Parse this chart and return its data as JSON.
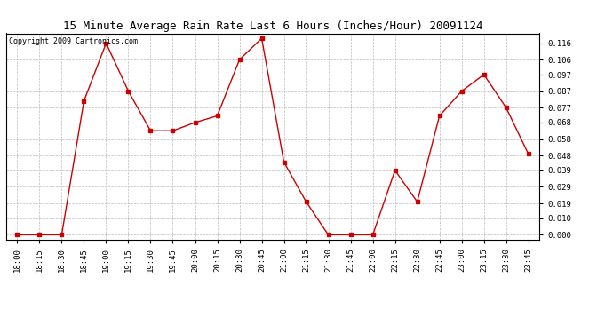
{
  "title": "15 Minute Average Rain Rate Last 6 Hours (Inches/Hour) 20091124",
  "copyright": "Copyright 2009 Cartronics.com",
  "x_labels": [
    "18:00",
    "18:15",
    "18:30",
    "18:45",
    "19:00",
    "19:15",
    "19:30",
    "19:45",
    "20:00",
    "20:15",
    "20:30",
    "20:45",
    "21:00",
    "21:15",
    "21:30",
    "21:45",
    "22:00",
    "22:15",
    "22:30",
    "22:45",
    "23:00",
    "23:15",
    "23:30",
    "23:45"
  ],
  "y_values": [
    0.0,
    0.0,
    0.0,
    0.081,
    0.116,
    0.087,
    0.063,
    0.063,
    0.068,
    0.072,
    0.106,
    0.119,
    0.044,
    0.02,
    0.0,
    0.0,
    0.0,
    0.039,
    0.02,
    0.072,
    0.087,
    0.097,
    0.077,
    0.049
  ],
  "y_ticks": [
    0.0,
    0.01,
    0.019,
    0.029,
    0.039,
    0.048,
    0.058,
    0.068,
    0.077,
    0.087,
    0.097,
    0.106,
    0.116
  ],
  "line_color": "#cc0000",
  "marker": "s",
  "marker_size": 2.5,
  "bg_color": "#ffffff",
  "plot_bg_color": "#ffffff",
  "grid_color": "#bbbbbb",
  "title_fontsize": 9,
  "copyright_fontsize": 6,
  "tick_fontsize": 6.5,
  "ylim": [
    -0.003,
    0.122
  ]
}
